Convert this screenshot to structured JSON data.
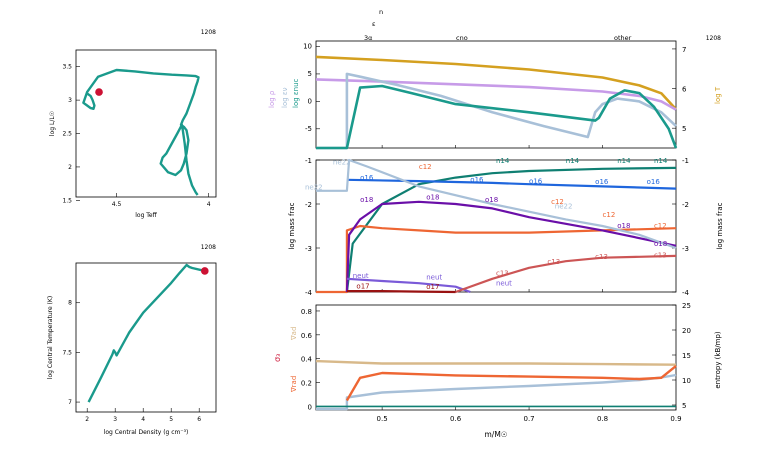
{
  "model_number": "1208",
  "colors": {
    "teal": "#1a9a8c",
    "red_dot": "#cc1133",
    "gold": "#d4a020",
    "lavender": "#c79be8",
    "lightblue": "#a8c0d8",
    "blue": "#1f66dd",
    "purple": "#6a0fa8",
    "darkred": "#991111",
    "rose": "#cc5555",
    "orange": "#ee6633",
    "tan": "#d8b98a",
    "violet": "#7a5ad8",
    "salmon": "#e8a080",
    "darkteal": "#0f7f72"
  },
  "chart_data": [
    {
      "id": "hr",
      "type": "line",
      "xlabel": "log Teff",
      "ylabel": "log L/L☉",
      "model": "1208",
      "xlim": [
        4.72,
        3.96
      ],
      "ylim": [
        1.55,
        3.75
      ],
      "xticks": [
        4.5,
        4
      ],
      "yticks": [
        1.5,
        2,
        2.5,
        3,
        3.5
      ],
      "series": [
        {
          "x": [
            4.66,
            4.64,
            4.63,
            4.62,
            4.625,
            4.64,
            4.66,
            4.68,
            4.66,
            4.6,
            4.5,
            4.4,
            4.3,
            4.2,
            4.12,
            4.07,
            4.055,
            4.06,
            4.07,
            4.08,
            4.1,
            4.12,
            4.14,
            4.15,
            4.135,
            4.12,
            4.11,
            4.12,
            4.135,
            4.15,
            4.18,
            4.22,
            4.26,
            4.25,
            4.23,
            4.2,
            4.17,
            4.145,
            4.14,
            4.13,
            4.12,
            4.11,
            4.09,
            4.07,
            4.06
          ],
          "y": [
            3.1,
            3.06,
            3.0,
            2.92,
            2.87,
            2.88,
            2.92,
            2.96,
            3.12,
            3.35,
            3.45,
            3.43,
            3.4,
            3.38,
            3.37,
            3.36,
            3.34,
            3.28,
            3.2,
            3.1,
            2.95,
            2.8,
            2.7,
            2.63,
            2.6,
            2.55,
            2.4,
            2.2,
            2.05,
            1.95,
            1.88,
            1.92,
            2.05,
            2.14,
            2.2,
            2.35,
            2.5,
            2.63,
            2.55,
            2.35,
            2.1,
            1.9,
            1.72,
            1.62,
            1.58
          ]
        }
      ],
      "current": {
        "x": 4.595,
        "y": 3.12
      }
    },
    {
      "id": "center",
      "type": "line",
      "xlabel": "log Central Density (g cm⁻³)",
      "ylabel": "log Central Temperature (K)",
      "model": "1208",
      "xlim": [
        1.6,
        6.6
      ],
      "ylim": [
        6.9,
        8.4
      ],
      "xticks": [
        2,
        3,
        4,
        5,
        6
      ],
      "yticks": [
        7,
        7.5,
        8
      ],
      "series": [
        {
          "x": [
            2.05,
            2.5,
            2.9,
            2.95,
            3.0,
            3.05,
            3.5,
            4.0,
            4.5,
            5.0,
            5.3,
            5.55,
            5.65,
            5.75,
            6.2
          ],
          "y": [
            7.0,
            7.25,
            7.48,
            7.52,
            7.5,
            7.47,
            7.7,
            7.9,
            8.05,
            8.2,
            8.3,
            8.38,
            8.36,
            8.35,
            8.32
          ]
        }
      ],
      "current": {
        "x": 6.2,
        "y": 8.32
      }
    },
    {
      "id": "profile_top",
      "type": "line",
      "ylabel_left": [
        "log ρ",
        "log εν",
        "log εnuc"
      ],
      "ylabel_right": "log T",
      "model": "1208",
      "top_axis_label_eps": "ε",
      "top_axis_label_n": "n",
      "top_zone_labels": [
        "3α",
        "cno",
        "other"
      ],
      "xlim": [
        0.41,
        0.9
      ],
      "ylim_left": [
        -8.5,
        11
      ],
      "ylim_right": [
        4.5,
        7.2
      ],
      "yticks_left": [
        -5,
        0,
        5,
        10
      ],
      "yticks_right": [
        5,
        6,
        7
      ],
      "series": [
        {
          "name": "log T",
          "axis": "right",
          "x": [
            0.41,
            0.5,
            0.6,
            0.7,
            0.8,
            0.85,
            0.88,
            0.9
          ],
          "y": [
            6.8,
            6.72,
            6.62,
            6.48,
            6.28,
            6.08,
            5.88,
            5.48
          ]
        },
        {
          "name": "log ρ",
          "axis": "left",
          "x": [
            0.41,
            0.5,
            0.6,
            0.7,
            0.8,
            0.85,
            0.88,
            0.9
          ],
          "y": [
            4.0,
            3.6,
            3.1,
            2.6,
            1.8,
            1.0,
            0.0,
            -1.5
          ]
        },
        {
          "name": "log εν",
          "axis": "left",
          "x": [
            0.41,
            0.452,
            0.452,
            0.47,
            0.52,
            0.58,
            0.65,
            0.72,
            0.78,
            0.79,
            0.8,
            0.82,
            0.85,
            0.88,
            0.9
          ],
          "y": [
            -8.5,
            -8.5,
            5.0,
            4.5,
            3.0,
            1.0,
            -2.0,
            -4.5,
            -6.5,
            -2.0,
            -0.5,
            0.5,
            0.0,
            -2.0,
            -4.5
          ]
        },
        {
          "name": "log εnuc",
          "axis": "left",
          "x": [
            0.41,
            0.452,
            0.452,
            0.47,
            0.5,
            0.54,
            0.6,
            0.7,
            0.79,
            0.795,
            0.81,
            0.83,
            0.85,
            0.87,
            0.89,
            0.9
          ],
          "y": [
            -8.5,
            -8.5,
            -8.5,
            2.5,
            2.8,
            1.5,
            -0.5,
            -2.0,
            -3.5,
            -3.0,
            0.5,
            2.0,
            1.5,
            -1.0,
            -5.0,
            -8.5
          ]
        }
      ]
    },
    {
      "id": "profile_abund",
      "type": "line",
      "ylabel_left": "log mass frac",
      "ylabel_right": "log mass frac",
      "xlim": [
        0.41,
        0.9
      ],
      "ylim": [
        -4,
        -1
      ],
      "yticks": [
        -4,
        -3,
        -2,
        -1
      ],
      "series": [
        {
          "name": "n14",
          "x": [
            0.452,
            0.46,
            0.5,
            0.55,
            0.6,
            0.65,
            0.7,
            0.8,
            0.9
          ],
          "y": [
            -4,
            -2.9,
            -2.0,
            -1.55,
            -1.4,
            -1.3,
            -1.25,
            -1.2,
            -1.18
          ]
        },
        {
          "name": "o16",
          "x": [
            0.452,
            0.55,
            0.6,
            0.65,
            0.7,
            0.8,
            0.9
          ],
          "y": [
            -1.45,
            -1.48,
            -1.5,
            -1.52,
            -1.55,
            -1.6,
            -1.65
          ]
        },
        {
          "name": "c12",
          "x": [
            0.41,
            0.452,
            0.452,
            0.47,
            0.5,
            0.55,
            0.6,
            0.65,
            0.7,
            0.8,
            0.9
          ],
          "y": [
            -4,
            -4,
            -2.6,
            -2.5,
            -2.55,
            -2.6,
            -2.65,
            -2.65,
            -2.65,
            -2.6,
            -2.55
          ]
        },
        {
          "name": "o18",
          "x": [
            0.452,
            0.455,
            0.47,
            0.5,
            0.55,
            0.6,
            0.65,
            0.7,
            0.8,
            0.9
          ],
          "y": [
            -4,
            -2.7,
            -2.35,
            -2.0,
            -1.95,
            -2.0,
            -2.1,
            -2.3,
            -2.6,
            -2.95
          ]
        },
        {
          "name": "ne22",
          "x": [
            0.41,
            0.452,
            0.455,
            0.48,
            0.55,
            0.65,
            0.75,
            0.8,
            0.85,
            0.9
          ],
          "y": [
            -1.7,
            -1.7,
            -1.0,
            -1.15,
            -1.6,
            -2.0,
            -2.35,
            -2.5,
            -2.7,
            -3.0
          ]
        },
        {
          "name": "neut",
          "x": [
            0.452,
            0.5,
            0.55,
            0.6,
            0.62
          ],
          "y": [
            -3.7,
            -3.75,
            -3.8,
            -3.88,
            -4
          ]
        },
        {
          "name": "c13",
          "x": [
            0.6,
            0.65,
            0.7,
            0.75,
            0.8,
            0.85,
            0.9
          ],
          "y": [
            -4,
            -3.7,
            -3.45,
            -3.3,
            -3.22,
            -3.2,
            -3.18
          ]
        },
        {
          "name": "o17",
          "x": [
            0.452,
            0.5,
            0.55,
            0.6
          ],
          "y": [
            -3.98,
            -3.98,
            -3.99,
            -4
          ]
        }
      ],
      "labels": [
        "ne22",
        "c12",
        "n14",
        "o16",
        "o18",
        "neut",
        "o17",
        "c13"
      ]
    },
    {
      "id": "profile_bottom",
      "type": "line",
      "ylabel_left_sigma": "σ₃",
      "ylabel_left_ad": "∇ad",
      "ylabel_left_rad": "∇rad",
      "ylabel_right": "entropy (kB/mp)",
      "xlabel": "m/M☉",
      "xlim": [
        0.41,
        0.9
      ],
      "ylim_left": [
        -0.03,
        0.85
      ],
      "ylim_right": [
        4,
        25
      ],
      "xticks": [
        0.5,
        0.6,
        0.7,
        0.8,
        0.9
      ],
      "yticks_left": [
        0,
        0.2,
        0.4,
        0.6,
        0.8
      ],
      "yticks_right": [
        5,
        10,
        15,
        20,
        25
      ],
      "series": [
        {
          "name": "∇ad",
          "x": [
            0.41,
            0.5,
            0.6,
            0.7,
            0.8,
            0.9
          ],
          "y": [
            0.38,
            0.36,
            0.36,
            0.36,
            0.355,
            0.35
          ]
        },
        {
          "name": "entropy",
          "axis": "right",
          "x": [
            0.41,
            0.452,
            0.452,
            0.5,
            0.6,
            0.7,
            0.8,
            0.85,
            0.88,
            0.9
          ],
          "y": [
            4.2,
            4.2,
            6.5,
            7.5,
            8.2,
            8.8,
            9.5,
            10.0,
            10.5,
            11.0
          ]
        },
        {
          "name": "∇rad",
          "x": [
            0.452,
            0.47,
            0.5,
            0.55,
            0.6,
            0.7,
            0.8,
            0.85,
            0.88,
            0.9
          ],
          "y": [
            0.05,
            0.24,
            0.28,
            0.27,
            0.26,
            0.25,
            0.24,
            0.23,
            0.24,
            0.34
          ]
        },
        {
          "name": "σ₃",
          "x": [
            0.41,
            0.9
          ],
          "y": [
            0.0,
            0.0
          ]
        }
      ]
    }
  ]
}
